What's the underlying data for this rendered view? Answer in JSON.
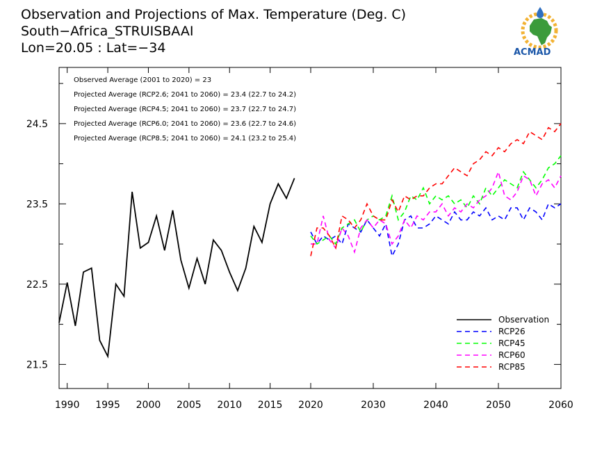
{
  "title_lines": [
    "Observation and Projections of Max. Temperature (Deg. C)",
    "South−Africa_STRUISBAAI",
    "Lon=20.05 : Lat=−34"
  ],
  "logo": {
    "text": "ACMAD",
    "icon": "acmad-africa-logo"
  },
  "stats": [
    "Observed Average (2001 to 2020) = 23",
    "Projected Average (RCP2.6; 2041 to 2060) = 23.4 (22.7 to 24.2)",
    "Projected Average (RCP4.5; 2041 to 2060) = 23.7 (22.7 to 24.7)",
    "Projected Average (RCP6.0; 2041 to 2060) = 23.6 (22.7 to 24.6)",
    "Projected Average (RCP8.5; 2041 to 2060) = 24.1 (23.2 to 25.4)"
  ],
  "chart_data": {
    "type": "line",
    "xlim": [
      1989,
      2060
    ],
    "ylim": [
      21.2,
      25.2
    ],
    "x_ticks_obs": [
      "1990",
      "1995",
      "2000",
      "2005",
      "2010",
      "2015",
      "2020"
    ],
    "x_ticks_proj": [
      "2030",
      "2040",
      "2050",
      "2060"
    ],
    "y_ticks": [
      "21.5",
      "22.5",
      "23.5",
      "24.5"
    ],
    "series": [
      {
        "name": "Observation",
        "color": "#000000",
        "dashed": false,
        "x": [
          1989,
          1990,
          1991,
          1992,
          1993,
          1994,
          1995,
          1996,
          1997,
          1998,
          1999,
          2000,
          2001,
          2002,
          2003,
          2004,
          2005,
          2006,
          2007,
          2008,
          2009,
          2010,
          2011,
          2012,
          2013,
          2014,
          2015,
          2016,
          2017,
          2018,
          2019
        ],
        "y": [
          22.02,
          22.52,
          21.98,
          22.65,
          22.7,
          21.8,
          21.6,
          22.5,
          22.35,
          23.65,
          22.95,
          23.02,
          23.35,
          22.92,
          23.42,
          22.8,
          22.45,
          22.82,
          22.5,
          23.05,
          22.92,
          22.65,
          22.42,
          22.7,
          23.22,
          23.02,
          23.5,
          23.75,
          23.57,
          23.82,
          null
        ]
      },
      {
        "name": "RCP26",
        "color": "#0000ff",
        "dashed": true,
        "x": [
          2020,
          2021,
          2022,
          2023,
          2024,
          2025,
          2026,
          2027,
          2028,
          2029,
          2030,
          2031,
          2032,
          2033,
          2034,
          2035,
          2036,
          2037,
          2038,
          2039,
          2040,
          2041,
          2042,
          2043,
          2044,
          2045,
          2046,
          2047,
          2048,
          2049,
          2050,
          2051,
          2052,
          2053,
          2054,
          2055,
          2056,
          2057,
          2058,
          2059,
          2060
        ],
        "y": [
          23.15,
          23.0,
          23.1,
          23.05,
          23.1,
          23.0,
          23.25,
          23.2,
          23.15,
          23.3,
          23.2,
          23.1,
          23.25,
          22.85,
          23.0,
          23.3,
          23.35,
          23.2,
          23.2,
          23.25,
          23.35,
          23.3,
          23.25,
          23.4,
          23.3,
          23.3,
          23.4,
          23.35,
          23.45,
          23.3,
          23.35,
          23.3,
          23.45,
          23.45,
          23.3,
          23.45,
          23.4,
          23.3,
          23.5,
          23.45,
          23.5
        ]
      },
      {
        "name": "RCP45",
        "color": "#00ff00",
        "dashed": true,
        "x": [
          2020,
          2021,
          2022,
          2023,
          2024,
          2025,
          2026,
          2027,
          2028,
          2029,
          2030,
          2031,
          2032,
          2033,
          2034,
          2035,
          2036,
          2037,
          2038,
          2039,
          2040,
          2041,
          2042,
          2043,
          2044,
          2045,
          2046,
          2047,
          2048,
          2049,
          2050,
          2051,
          2052,
          2053,
          2054,
          2055,
          2056,
          2057,
          2058,
          2059,
          2060
        ],
        "y": [
          23.1,
          23.0,
          23.05,
          23.1,
          23.0,
          23.2,
          23.25,
          23.3,
          23.15,
          23.3,
          23.35,
          23.3,
          23.35,
          23.6,
          23.3,
          23.4,
          23.6,
          23.55,
          23.7,
          23.5,
          23.6,
          23.55,
          23.6,
          23.5,
          23.55,
          23.45,
          23.6,
          23.5,
          23.7,
          23.6,
          23.7,
          23.8,
          23.75,
          23.7,
          23.9,
          23.8,
          23.7,
          23.8,
          23.95,
          24.0,
          24.1
        ]
      },
      {
        "name": "RCP60",
        "color": "#ff00ff",
        "dashed": true,
        "x": [
          2020,
          2021,
          2022,
          2023,
          2024,
          2025,
          2026,
          2027,
          2028,
          2029,
          2030,
          2031,
          2032,
          2033,
          2034,
          2035,
          2036,
          2037,
          2038,
          2039,
          2040,
          2041,
          2042,
          2043,
          2044,
          2045,
          2046,
          2047,
          2048,
          2049,
          2050,
          2051,
          2052,
          2053,
          2054,
          2055,
          2056,
          2057,
          2058,
          2059,
          2060
        ],
        "y": [
          23.0,
          23.0,
          23.35,
          23.05,
          22.95,
          23.2,
          23.1,
          22.9,
          23.2,
          23.3,
          23.2,
          23.3,
          23.25,
          23.0,
          23.1,
          23.3,
          23.2,
          23.35,
          23.3,
          23.4,
          23.4,
          23.5,
          23.35,
          23.45,
          23.4,
          23.5,
          23.45,
          23.55,
          23.6,
          23.7,
          23.9,
          23.6,
          23.55,
          23.65,
          23.85,
          23.8,
          23.6,
          23.75,
          23.8,
          23.7,
          23.85
        ]
      },
      {
        "name": "RCP85",
        "color": "#ff0000",
        "dashed": true,
        "x": [
          2020,
          2021,
          2022,
          2023,
          2024,
          2025,
          2026,
          2027,
          2028,
          2029,
          2030,
          2031,
          2032,
          2033,
          2034,
          2035,
          2036,
          2037,
          2038,
          2039,
          2040,
          2041,
          2042,
          2043,
          2044,
          2045,
          2046,
          2047,
          2048,
          2049,
          2050,
          2051,
          2052,
          2053,
          2054,
          2055,
          2056,
          2057,
          2058,
          2059,
          2060
        ],
        "y": [
          22.85,
          23.2,
          23.2,
          23.1,
          22.95,
          23.35,
          23.3,
          23.2,
          23.3,
          23.5,
          23.35,
          23.3,
          23.3,
          23.55,
          23.4,
          23.6,
          23.55,
          23.6,
          23.6,
          23.7,
          23.75,
          23.75,
          23.85,
          23.95,
          23.9,
          23.85,
          24.0,
          24.05,
          24.15,
          24.1,
          24.2,
          24.15,
          24.25,
          24.3,
          24.25,
          24.4,
          24.35,
          24.3,
          24.45,
          24.4,
          24.5
        ]
      }
    ],
    "legend_position": "bottom-right",
    "grid": false
  }
}
